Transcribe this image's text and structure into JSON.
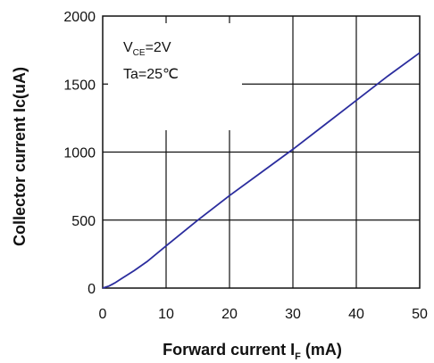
{
  "chart_data": {
    "type": "line",
    "xlabel": "Forward current I",
    "xlabel_sub": "F",
    "xlabel_unit": " (mA)",
    "ylabel": "Collector current Ic(uA)",
    "xlim": [
      0,
      50
    ],
    "ylim": [
      0,
      2000
    ],
    "x_ticks": [
      0,
      10,
      20,
      30,
      40,
      50
    ],
    "y_ticks": [
      0,
      500,
      1000,
      1500,
      2000
    ],
    "grid": true,
    "annotations": {
      "line1_main": "V",
      "line1_sub": "CE",
      "line1_rest": "=2V",
      "line2": "Ta=25℃"
    },
    "series": [
      {
        "color": "#2b2d9e",
        "x": [
          0,
          1,
          2,
          3,
          5,
          7,
          10,
          15,
          20,
          25,
          30,
          35,
          40,
          45,
          50
        ],
        "y": [
          0,
          15,
          40,
          70,
          130,
          195,
          310,
          500,
          680,
          850,
          1020,
          1200,
          1380,
          1560,
          1730
        ]
      }
    ]
  }
}
